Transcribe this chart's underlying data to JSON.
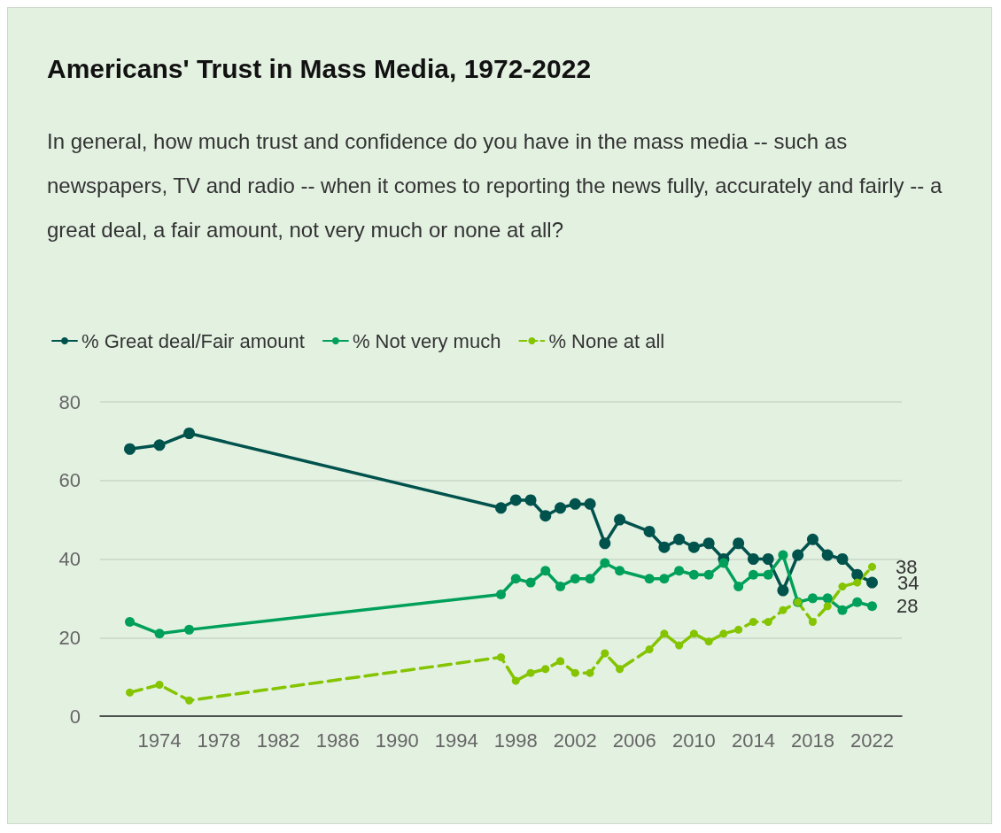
{
  "chart_data": {
    "type": "line",
    "title": "Americans' Trust in Mass Media, 1972-2022",
    "subtitle": "In general, how much trust and confidence do you have in the mass media -- such as newspapers, TV and radio -- when it comes to reporting the news fully, accurately and fairly -- a great deal, a fair amount, not very much or none at all?",
    "x": [
      1972,
      1974,
      1976,
      1997,
      1998,
      1999,
      2000,
      2001,
      2002,
      2003,
      2004,
      2005,
      2007,
      2008,
      2009,
      2010,
      2011,
      2012,
      2013,
      2014,
      2015,
      2016,
      2017,
      2018,
      2019,
      2020,
      2021,
      2022
    ],
    "series": [
      {
        "name": "% Great deal/Fair amount",
        "color": "#00524d",
        "line_style": "solid",
        "values": [
          68,
          69,
          72,
          53,
          55,
          55,
          51,
          53,
          54,
          54,
          44,
          50,
          47,
          43,
          45,
          43,
          44,
          40,
          44,
          40,
          40,
          32,
          41,
          45,
          41,
          40,
          36,
          34
        ],
        "value_labels": [
          null,
          null,
          null,
          null,
          null,
          null,
          null,
          null,
          null,
          null,
          null,
          null,
          null,
          null,
          null,
          null,
          null,
          null,
          null,
          null,
          null,
          null,
          null,
          null,
          null,
          null,
          null,
          "34"
        ]
      },
      {
        "name": "% Not very much",
        "color": "#00a05a",
        "line_style": "solid",
        "values": [
          24,
          21,
          22,
          31,
          35,
          34,
          37,
          33,
          35,
          35,
          39,
          37,
          35,
          35,
          37,
          36,
          36,
          39,
          33,
          36,
          36,
          41,
          29,
          30,
          30,
          27,
          29,
          28
        ],
        "value_labels": [
          null,
          null,
          null,
          null,
          null,
          null,
          null,
          null,
          null,
          null,
          null,
          null,
          null,
          null,
          null,
          null,
          null,
          null,
          null,
          null,
          null,
          null,
          null,
          null,
          null,
          null,
          null,
          "28"
        ]
      },
      {
        "name": "% None at all",
        "color": "#84c400",
        "line_style": "dashed",
        "values": [
          6,
          8,
          4,
          15,
          9,
          11,
          12,
          14,
          11,
          11,
          16,
          12,
          17,
          21,
          18,
          21,
          19,
          21,
          22,
          24,
          24,
          27,
          29,
          24,
          28,
          33,
          34,
          38
        ],
        "value_labels": [
          null,
          null,
          null,
          null,
          null,
          null,
          null,
          null,
          null,
          null,
          null,
          null,
          null,
          null,
          null,
          null,
          null,
          null,
          null,
          null,
          null,
          null,
          null,
          null,
          null,
          null,
          null,
          "38"
        ]
      }
    ],
    "xlim": [
      1970,
      2024
    ],
    "xticks": [
      1974,
      1978,
      1982,
      1986,
      1990,
      1994,
      1998,
      2002,
      2006,
      2010,
      2014,
      2018,
      2022
    ],
    "ylim": [
      0,
      80
    ],
    "yticks": [
      0,
      20,
      40,
      60,
      80
    ],
    "grid": "y",
    "legend": "top left",
    "marker": "circle"
  }
}
